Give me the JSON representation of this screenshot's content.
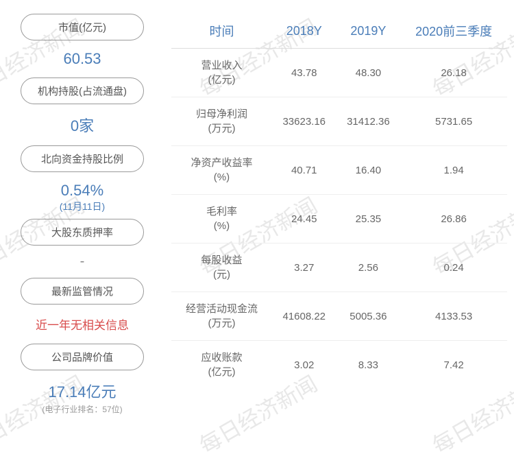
{
  "watermark_text": "每日经济新闻",
  "left": {
    "market_cap_label": "市值(亿元)",
    "market_cap_value": "60.53",
    "inst_holding_label": "机构持股(占流通盘)",
    "inst_holding_value": "0家",
    "northbound_label": "北向资金持股比例",
    "northbound_value": "0.54%",
    "northbound_date": "(11月11日)",
    "pledge_label": "大股东质押率",
    "pledge_value": "-",
    "regulatory_label": "最新监管情况",
    "regulatory_value": "近一年无相关信息",
    "brand_label": "公司品牌价值",
    "brand_value": "17.14亿元",
    "brand_rank": "(电子行业排名：57位)"
  },
  "table": {
    "headers": [
      "时间",
      "2018Y",
      "2019Y",
      "2020前三季度"
    ],
    "rows": [
      {
        "label": "营业收入\n(亿元)",
        "v1": "43.78",
        "v2": "48.30",
        "v3": "26.18"
      },
      {
        "label": "归母净利润\n(万元)",
        "v1": "33623.16",
        "v2": "31412.36",
        "v3": "5731.65"
      },
      {
        "label": "净资产收益率\n(%)",
        "v1": "40.71",
        "v2": "16.40",
        "v3": "1.94"
      },
      {
        "label": "毛利率\n(%)",
        "v1": "24.45",
        "v2": "25.35",
        "v3": "26.86"
      },
      {
        "label": "每股收益\n(元)",
        "v1": "3.27",
        "v2": "2.56",
        "v3": "0.24"
      },
      {
        "label": "经营活动现金流\n(万元)",
        "v1": "41608.22",
        "v2": "5005.36",
        "v3": "4133.53"
      },
      {
        "label": "应收账款\n(亿元)",
        "v1": "3.02",
        "v2": "8.33",
        "v3": "7.42"
      }
    ]
  }
}
